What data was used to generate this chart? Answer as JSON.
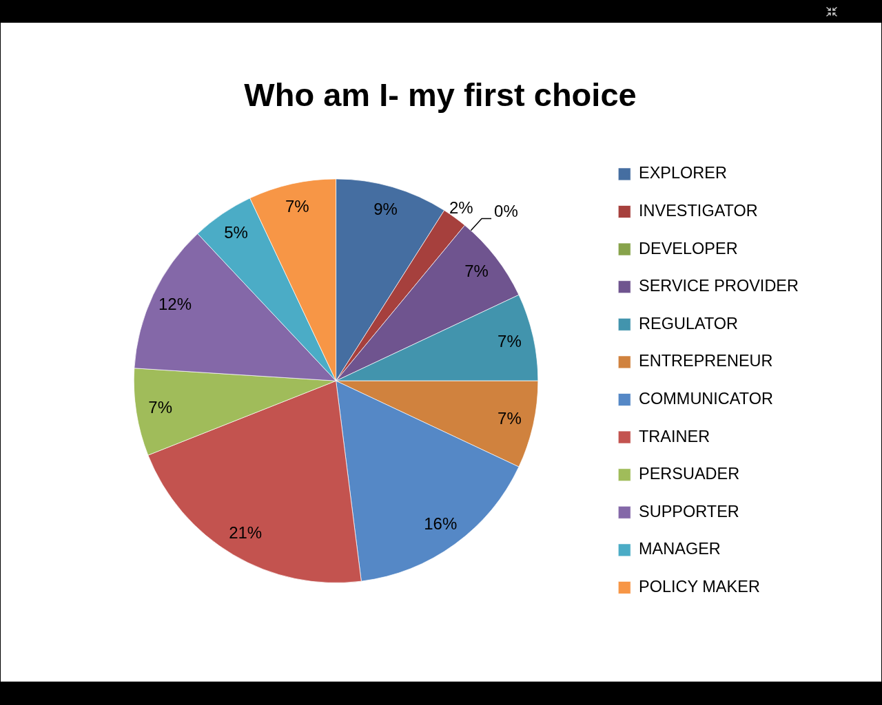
{
  "chart_data": {
    "type": "pie",
    "title": "Who am I- my first choice",
    "categories": [
      "EXPLORER",
      "INVESTIGATOR",
      "DEVELOPER",
      "SERVICE PROVIDER",
      "REGULATOR",
      "ENTREPRENEUR",
      "COMMUNICATOR",
      "TRAINER",
      "PERSUADER",
      "SUPPORTER",
      "MANAGER",
      "POLICY MAKER"
    ],
    "values": [
      9,
      2,
      0,
      7,
      7,
      7,
      16,
      21,
      7,
      12,
      5,
      7
    ],
    "colors": [
      "#456ea1",
      "#a6403d",
      "#87a34b",
      "#6f548f",
      "#4294ad",
      "#d0823e",
      "#5588c6",
      "#c3534f",
      "#a0bc5a",
      "#8468a8",
      "#4bacc6",
      "#f79646"
    ],
    "value_labels": [
      "9%",
      "2%",
      "0%",
      "7%",
      "7%",
      "7%",
      "16%",
      "21%",
      "7%",
      "12%",
      "5%",
      "7%"
    ],
    "legend": "right"
  }
}
